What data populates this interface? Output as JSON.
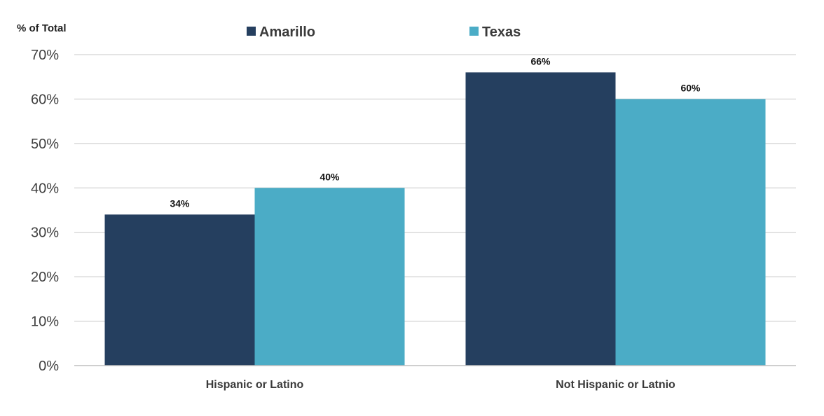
{
  "chart_data": {
    "type": "bar",
    "title": "",
    "ylabel": "% of Total",
    "xlabel": "",
    "categories": [
      "Hispanic or Latino",
      "Not Hispanic or Latnio"
    ],
    "series": [
      {
        "name": "Amarillo",
        "values": [
          34,
          66
        ],
        "labels": [
          "34%",
          "66%"
        ],
        "color": "#253f5f"
      },
      {
        "name": "Texas",
        "values": [
          40,
          60
        ],
        "labels": [
          "40%",
          "60%"
        ],
        "color": "#4bacc6"
      }
    ],
    "ylim": [
      0,
      70
    ],
    "yticks": [
      0,
      10,
      20,
      30,
      40,
      50,
      60,
      70
    ],
    "ytick_labels": [
      "0%",
      "10%",
      "20%",
      "30%",
      "40%",
      "50%",
      "60%",
      "70%"
    ],
    "grid": true,
    "legend_position": "top-center",
    "gridline_color": "#c8c8c8",
    "axis_color": "#bfbfbf"
  }
}
